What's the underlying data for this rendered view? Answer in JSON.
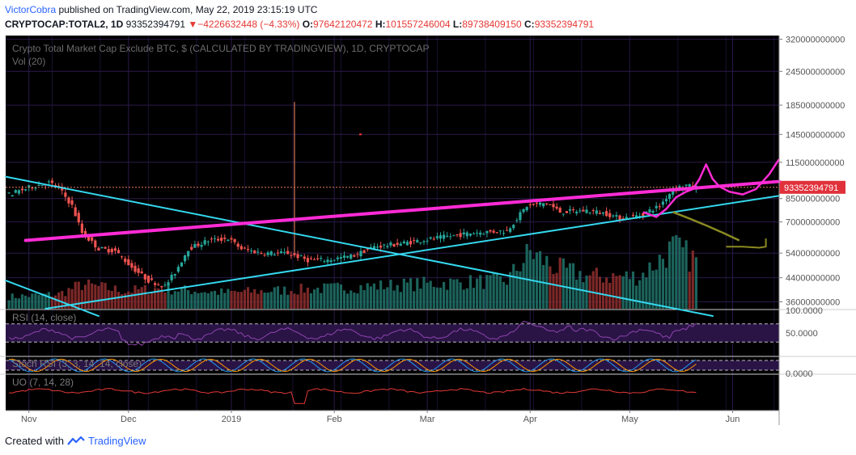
{
  "header": {
    "author": "VictorCobra",
    "published_text": "published on TradingView.com, May 22, 2019 23:15:19 UTC",
    "symbol": "CRYPTOCAP:TOTAL2, 1D",
    "last": "93352394791",
    "change": "−4226632448 (−4.33%)",
    "o_label": "O:",
    "o_value": "97642120472",
    "h_label": "H:",
    "h_value": "101557246004",
    "l_label": "L:",
    "l_value": "89738409150",
    "c_label": "C:",
    "c_value": "93352394791"
  },
  "footer": {
    "created_with": "Created with",
    "brand": "TradingView"
  },
  "colors": {
    "bg": "#000000",
    "up": "#26a69a",
    "down": "#ef5350",
    "trend_magenta": "#ff2bd6",
    "trend_cyan": "#34d8ee",
    "olive": "#8a8a22",
    "price_tag": "#e0313a",
    "grid": "#2a1a4a"
  },
  "chart_data": [
    {
      "type": "candlestick",
      "title": "Crypto Total Market Cap Exclude BTC, $ (CALCULATED BY TRADINGVIEW), 1D, CRYPTOCAP",
      "volume_legend": "Vol (20)",
      "y_scale": "log",
      "ylim": [
        34000000000,
        330000000000
      ],
      "y_ticks": [
        {
          "v": 320000000000,
          "label": "320000000000"
        },
        {
          "v": 245000000000,
          "label": "245000000000"
        },
        {
          "v": 185000000000,
          "label": "185000000000"
        },
        {
          "v": 145000000000,
          "label": "145000000000"
        },
        {
          "v": 115000000000,
          "label": "115000000000"
        },
        {
          "v": 85000000000,
          "label": "85000000000"
        },
        {
          "v": 70000000000,
          "label": "70000000000"
        },
        {
          "v": 54000000000,
          "label": "54000000000"
        },
        {
          "v": 44000000000,
          "label": "44000000000"
        },
        {
          "v": 36000000000,
          "label": "36000000000"
        }
      ],
      "last_price": {
        "value": 93352394791,
        "label": "93352394791"
      },
      "x_labels": [
        {
          "day": -19,
          "label": "Nov"
        },
        {
          "day": 11,
          "label": "Dec"
        },
        {
          "day": 42,
          "label": "2019"
        },
        {
          "day": 73,
          "label": "Feb"
        },
        {
          "day": 101,
          "label": "Mar"
        },
        {
          "day": 132,
          "label": "Apr"
        },
        {
          "day": 162,
          "label": "May"
        },
        {
          "day": 193,
          "label": "Jun"
        }
      ],
      "price_path": [
        {
          "d": -24,
          "v": 88000000000
        },
        {
          "d": -17,
          "v": 94000000000
        },
        {
          "d": -12,
          "v": 97000000000
        },
        {
          "d": -9,
          "v": 93000000000
        },
        {
          "d": -5,
          "v": 80000000000
        },
        {
          "d": -2,
          "v": 64000000000
        },
        {
          "d": 3,
          "v": 56000000000
        },
        {
          "d": 8,
          "v": 55000000000
        },
        {
          "d": 13,
          "v": 48000000000
        },
        {
          "d": 18,
          "v": 43000000000
        },
        {
          "d": 23,
          "v": 41000000000
        },
        {
          "d": 26,
          "v": 46000000000
        },
        {
          "d": 30,
          "v": 56000000000
        },
        {
          "d": 36,
          "v": 60000000000
        },
        {
          "d": 42,
          "v": 61000000000
        },
        {
          "d": 46,
          "v": 56000000000
        },
        {
          "d": 52,
          "v": 54000000000
        },
        {
          "d": 60,
          "v": 54000000000
        },
        {
          "d": 66,
          "v": 51000000000
        },
        {
          "d": 72,
          "v": 51000000000
        },
        {
          "d": 80,
          "v": 53000000000
        },
        {
          "d": 86,
          "v": 57000000000
        },
        {
          "d": 92,
          "v": 58000000000
        },
        {
          "d": 100,
          "v": 60000000000
        },
        {
          "d": 108,
          "v": 62000000000
        },
        {
          "d": 116,
          "v": 64000000000
        },
        {
          "d": 126,
          "v": 65000000000
        },
        {
          "d": 132,
          "v": 80000000000
        },
        {
          "d": 138,
          "v": 82000000000
        },
        {
          "d": 142,
          "v": 76000000000
        },
        {
          "d": 150,
          "v": 77000000000
        },
        {
          "d": 156,
          "v": 75000000000
        },
        {
          "d": 160,
          "v": 72000000000
        },
        {
          "d": 166,
          "v": 74000000000
        },
        {
          "d": 172,
          "v": 80000000000
        },
        {
          "d": 176,
          "v": 92000000000
        },
        {
          "d": 180,
          "v": 95000000000
        },
        {
          "d": 182,
          "v": 93352394791
        }
      ],
      "volume_path": [
        {
          "d": -24,
          "v": 0.15
        },
        {
          "d": -10,
          "v": 0.18
        },
        {
          "d": -3,
          "v": 0.3
        },
        {
          "d": 10,
          "v": 0.22
        },
        {
          "d": 20,
          "v": 0.25
        },
        {
          "d": 40,
          "v": 0.2
        },
        {
          "d": 70,
          "v": 0.25
        },
        {
          "d": 95,
          "v": 0.3
        },
        {
          "d": 125,
          "v": 0.35
        },
        {
          "d": 132,
          "v": 0.7
        },
        {
          "d": 140,
          "v": 0.5
        },
        {
          "d": 150,
          "v": 0.4
        },
        {
          "d": 165,
          "v": 0.4
        },
        {
          "d": 175,
          "v": 0.75
        },
        {
          "d": 182,
          "v": 0.6
        }
      ],
      "spike": {
        "d": 61,
        "high": 190000000000
      },
      "annotations": {
        "magenta_trend": [
          {
            "d": -20,
            "v": 60000000000
          },
          {
            "d": 207,
            "v": 98000000000
          }
        ],
        "cyan_upper": [
          {
            "d": -26,
            "v": 102000000000
          },
          {
            "d": 187,
            "v": 32000000000
          }
        ],
        "cyan_lower_left": [
          {
            "d": -26,
            "v": 43000000000
          },
          {
            "d": 2,
            "v": 32000000000
          }
        ],
        "cyan_support": [
          {
            "d": -14,
            "v": 34000000000
          },
          {
            "d": 207,
            "v": 87000000000
          }
        ]
      }
    },
    {
      "type": "line",
      "name": "RSI",
      "legend": "RSI (14, close)",
      "y_ticks": [
        {
          "v": 100,
          "label": "100.0000"
        },
        {
          "v": 50,
          "label": "50.0000"
        }
      ],
      "bands": [
        70,
        30
      ]
    },
    {
      "type": "line",
      "name": "Stoch RSI",
      "legend": "Stoch RSI (3, 3, 14, 14, close)",
      "y_ticks": [
        {
          "v": 0,
          "label": "0.0000"
        }
      ]
    },
    {
      "type": "line",
      "name": "UO",
      "legend": "UO (7, 14, 28)"
    }
  ]
}
